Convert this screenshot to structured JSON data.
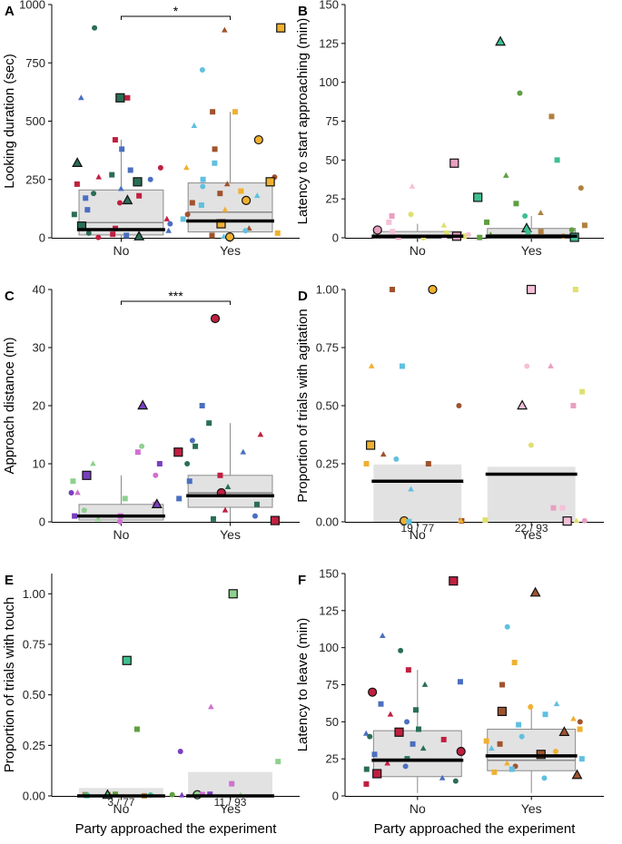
{
  "figure": {
    "x_axis_title": "Party approached the experiment"
  },
  "chart_data": [
    {
      "panel": "A",
      "type": "box",
      "ylabel": "Looking duration (sec)",
      "ylim": [
        0,
        1000
      ],
      "yticks": [
        0,
        250,
        500,
        750,
        1000
      ],
      "categories": [
        "No",
        "Yes"
      ],
      "boxes": [
        {
          "category": "No",
          "q1": 12,
          "median": 65,
          "q3": 205,
          "whisker_low": 0,
          "whisker_high": 420,
          "thick_median": 35
        },
        {
          "category": "Yes",
          "q1": 25,
          "median": 110,
          "q3": 235,
          "whisker_low": 0,
          "whisker_high": 540,
          "thick_median": 72
        }
      ],
      "significance": "*",
      "points": {
        "No": [
          600,
          600,
          600,
          900,
          420,
          380,
          320,
          300,
          290,
          270,
          260,
          250,
          240,
          230,
          210,
          190,
          180,
          170,
          160,
          150,
          120,
          100,
          80,
          60,
          50,
          40,
          30,
          20,
          15,
          10,
          5,
          0
        ],
        "Yes": [
          900,
          890,
          720,
          540,
          540,
          480,
          420,
          380,
          320,
          300,
          260,
          250,
          240,
          230,
          220,
          200,
          190,
          180,
          160,
          150,
          140,
          120,
          100,
          80,
          60,
          40,
          30,
          20,
          10,
          5,
          0
        ]
      }
    },
    {
      "panel": "B",
      "type": "box",
      "ylabel": "Latency to start approaching (min)",
      "ylim": [
        0,
        150
      ],
      "yticks": [
        0,
        25,
        50,
        75,
        100,
        125,
        150
      ],
      "categories": [
        "No",
        "Yes"
      ],
      "boxes": [
        {
          "category": "No",
          "q1": 0,
          "median": 1,
          "q3": 4,
          "whisker_low": 0,
          "whisker_high": 9,
          "thick_median": 1
        },
        {
          "category": "Yes",
          "q1": 0,
          "median": 2,
          "q3": 6,
          "whisker_low": 0,
          "whisker_high": 14,
          "thick_median": 1
        }
      ],
      "points": {
        "No": [
          48,
          33,
          15,
          14,
          10,
          8,
          5,
          4,
          3,
          2,
          2,
          1,
          1,
          0,
          0,
          0
        ],
        "Yes": [
          126,
          93,
          78,
          50,
          40,
          32,
          26,
          22,
          16,
          14,
          10,
          8,
          6,
          5,
          4,
          3,
          2,
          1,
          0,
          0
        ]
      }
    },
    {
      "panel": "C",
      "type": "box",
      "ylabel": "Approach distance (m)",
      "ylim": [
        0,
        40
      ],
      "yticks": [
        0,
        10,
        20,
        30,
        40
      ],
      "categories": [
        "No",
        "Yes"
      ],
      "boxes": [
        {
          "category": "No",
          "q1": 0.3,
          "median": 1,
          "q3": 3,
          "whisker_low": 0,
          "whisker_high": 8,
          "thick_median": 1
        },
        {
          "category": "Yes",
          "q1": 2.5,
          "median": 5,
          "q3": 8,
          "whisker_low": 0,
          "whisker_high": 17,
          "thick_median": 4.5
        }
      ],
      "significance": "***",
      "points": {
        "No": [
          20,
          13,
          12,
          10,
          10,
          8,
          8,
          7,
          5,
          5,
          4,
          3,
          3,
          2,
          1,
          1,
          0.5,
          0
        ],
        "Yes": [
          35,
          20,
          17,
          15,
          14,
          13,
          12,
          12,
          10,
          8,
          7,
          6,
          5,
          4,
          3,
          2,
          1,
          0.5,
          0
        ]
      }
    },
    {
      "panel": "D",
      "type": "bar",
      "ylabel": "Proportion of trials with agitation",
      "ylim": [
        0,
        1
      ],
      "yticks": [
        "0.00",
        "0.25",
        "0.50",
        "0.75",
        "1.00"
      ],
      "categories": [
        "No",
        "Yes"
      ],
      "values": [
        0.247,
        0.237
      ],
      "means": [
        0.175,
        0.205
      ],
      "count_labels": [
        "19 / 77",
        "22 / 93"
      ],
      "points": {
        "No": [
          1.0,
          1.0,
          0.67,
          0.67,
          0.5,
          0.33,
          0.33,
          0.29,
          0.27,
          0.25,
          0.25,
          0.14,
          0,
          0,
          0,
          0
        ],
        "Yes": [
          1.0,
          1.0,
          0.67,
          0.67,
          0.56,
          0.5,
          0.5,
          0.33,
          0.06,
          0.06,
          0,
          0,
          0,
          0
        ]
      }
    },
    {
      "panel": "E",
      "type": "bar",
      "ylabel": "Proportion of trials with touch",
      "ylim": [
        0,
        1.1
      ],
      "yticks": [
        "0.00",
        "0.25",
        "0.50",
        "0.75",
        "1.00"
      ],
      "categories": [
        "No",
        "Yes"
      ],
      "values": [
        0.039,
        0.118
      ],
      "means": [
        0.0,
        0.0
      ],
      "count_labels": [
        "3 / 77",
        "11 / 93"
      ],
      "points": {
        "No": [
          0.67,
          0.33,
          0,
          0,
          0,
          0,
          0,
          0,
          0,
          0
        ],
        "Yes": [
          1.0,
          0.44,
          0.22,
          0.17,
          0.06,
          0,
          0,
          0,
          0,
          0
        ]
      }
    },
    {
      "panel": "F",
      "type": "box",
      "ylabel": "Latency to leave (min)",
      "ylim": [
        0,
        150
      ],
      "yticks": [
        0,
        25,
        50,
        75,
        100,
        125,
        150
      ],
      "categories": [
        "No",
        "Yes"
      ],
      "boxes": [
        {
          "category": "No",
          "q1": 13,
          "median": 25,
          "q3": 44,
          "whisker_low": 2,
          "whisker_high": 85,
          "thick_median": 24
        },
        {
          "category": "Yes",
          "q1": 17,
          "median": 24,
          "q3": 45,
          "whisker_low": 2,
          "whisker_high": 62,
          "thick_median": 27
        }
      ],
      "points": {
        "No": [
          145,
          108,
          98,
          85,
          77,
          75,
          70,
          62,
          58,
          55,
          50,
          45,
          43,
          42,
          40,
          38,
          35,
          32,
          30,
          28,
          25,
          22,
          20,
          18,
          15,
          12,
          10,
          8
        ],
        "Yes": [
          137,
          114,
          90,
          75,
          62,
          60,
          57,
          55,
          52,
          50,
          48,
          45,
          43,
          40,
          37,
          35,
          32,
          30,
          28,
          25,
          22,
          20,
          18,
          16,
          14,
          12
        ]
      }
    }
  ]
}
